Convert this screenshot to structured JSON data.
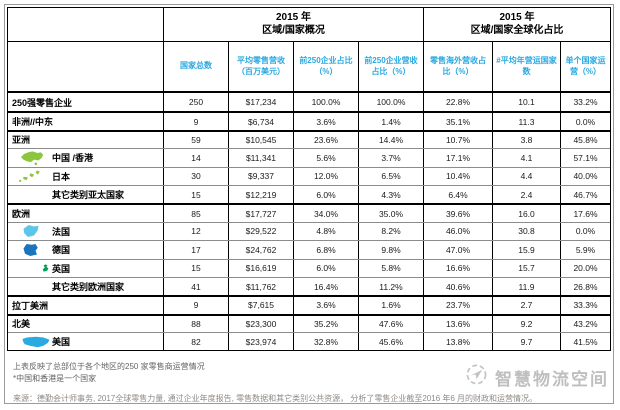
{
  "table": {
    "group_headers": [
      {
        "line1": "2015 年",
        "line2": "区域/国家概况"
      },
      {
        "line1": "2015 年",
        "line2": "区域/国家全球化占比"
      }
    ],
    "columns": [
      "国家总数",
      "平均零售营收（百万美元）",
      "前250企业占比（%）",
      "前250企业营收占比（%）",
      "零售海外营收占比（%）",
      "#平均年营运国家数",
      "单个国家运营（%）"
    ],
    "rows": [
      {
        "label": "250强零售企业",
        "level": 0,
        "icon": "",
        "icon_color": "",
        "thick": true,
        "values": [
          "250",
          "$17,234",
          "100.0%",
          "100.0%",
          "22.8%",
          "10.1",
          "33.2%"
        ]
      },
      {
        "label": "非洲//中东",
        "level": 0,
        "icon": "",
        "icon_color": "",
        "thick": true,
        "values": [
          "9",
          "$6,734",
          "3.6%",
          "1.4%",
          "35.1%",
          "11.3",
          "0.0%"
        ]
      },
      {
        "label": "亚洲",
        "level": 0,
        "icon": "",
        "icon_color": "",
        "thick": true,
        "values": [
          "59",
          "$10,545",
          "23.6%",
          "14.4%",
          "10.7%",
          "3.8",
          "45.8%"
        ]
      },
      {
        "label": "中国 /香港",
        "level": 1,
        "icon": "china-map-icon",
        "icon_color": "#8cc63f",
        "thick": false,
        "values": [
          "14",
          "$11,341",
          "5.6%",
          "3.7%",
          "17.1%",
          "4.1",
          "57.1%"
        ]
      },
      {
        "label": "日本",
        "level": 1,
        "icon": "japan-map-icon",
        "icon_color": "#8cc63f",
        "thick": false,
        "values": [
          "30",
          "$9,337",
          "12.0%",
          "6.5%",
          "10.4%",
          "4.4",
          "40.0%"
        ]
      },
      {
        "label": "其它类别亚太国家",
        "level": 1,
        "icon": "",
        "icon_color": "",
        "thick": false,
        "values": [
          "15",
          "$12,219",
          "6.0%",
          "4.3%",
          "6.4%",
          "2.4",
          "46.7%"
        ]
      },
      {
        "label": "欧洲",
        "level": 0,
        "icon": "",
        "icon_color": "",
        "thick": true,
        "values": [
          "85",
          "$17,727",
          "34.0%",
          "35.0%",
          "39.6%",
          "16.0",
          "17.6%"
        ]
      },
      {
        "label": "法国",
        "level": 1,
        "icon": "france-map-icon",
        "icon_color": "#5bc5ea",
        "thick": false,
        "values": [
          "12",
          "$29,522",
          "4.8%",
          "8.2%",
          "46.0%",
          "30.8",
          "0.0%"
        ]
      },
      {
        "label": "德国",
        "level": 1,
        "icon": "germany-map-icon",
        "icon_color": "#1b75bc",
        "thick": false,
        "values": [
          "17",
          "$24,762",
          "6.8%",
          "9.8%",
          "47.0%",
          "15.9",
          "5.9%"
        ]
      },
      {
        "label": "英国",
        "level": 1,
        "icon": "uk-map-icon",
        "icon_color": "#00a05a",
        "thick": false,
        "values": [
          "15",
          "$16,619",
          "6.0%",
          "5.8%",
          "16.6%",
          "15.7",
          "20.0%"
        ]
      },
      {
        "label": "其它类别欧洲国家",
        "level": 1,
        "icon": "",
        "icon_color": "",
        "thick": false,
        "values": [
          "41",
          "$11,762",
          "16.4%",
          "11.2%",
          "40.6%",
          "11.9",
          "26.8%"
        ]
      },
      {
        "label": "拉丁美洲",
        "level": 0,
        "icon": "",
        "icon_color": "",
        "thick": true,
        "values": [
          "9",
          "$7,615",
          "3.6%",
          "1.6%",
          "23.7%",
          "2.7",
          "33.3%"
        ]
      },
      {
        "label": "北美",
        "level": 0,
        "icon": "",
        "icon_color": "",
        "thick": true,
        "values": [
          "88",
          "$23,300",
          "35.2%",
          "47.6%",
          "13.6%",
          "9.2",
          "43.2%"
        ]
      },
      {
        "label": "美国",
        "level": 1,
        "icon": "usa-map-icon",
        "icon_color": "#29abe2",
        "thick": false,
        "values": [
          "82",
          "$23,974",
          "32.8%",
          "45.6%",
          "13.8%",
          "9.7",
          "41.5%"
        ]
      }
    ]
  },
  "footnotes": {
    "note1": "上表反映了总部位于各个地区的250 家零售商运营情况",
    "note2": "*中国和香港是一个国家",
    "source": "来源：德勤会计师事务, 2017全球零售力量, 通过企业年度报告, 零售数据和其它类别公共资源， 分析了零售企业截至2016 年6 月的财政和运营情况。"
  },
  "logo": {
    "text": "智慧物流空间",
    "icon": "paper-plane-icon"
  },
  "colors": {
    "header_accent": "#29a9e1",
    "grid_major": "#000000",
    "grid_minor": "#8c8c8c",
    "china_green": "#8cc63f",
    "france_blue": "#5bc5ea",
    "germany_blue": "#1b75bc",
    "uk_green": "#00a05a",
    "usa_blue": "#29abe2",
    "logo_grey": "#bfbfbf"
  },
  "chart_data": {
    "type": "table",
    "title": "2015年 区域/国家概况与区域/国家全球化占比",
    "column_groups": [
      {
        "label": "2015 年 区域/国家概况",
        "columns": [
          0,
          1,
          2,
          3
        ]
      },
      {
        "label": "2015 年 区域/国家全球化占比",
        "columns": [
          4,
          5,
          6
        ]
      }
    ],
    "columns": [
      "国家总数",
      "平均零售营收（百万美元）",
      "前250企业占比（%）",
      "前250企业营收占比（%）",
      "零售海外营收占比（%）",
      "#平均年营运国家数",
      "单个国家运营（%）"
    ],
    "rows": [
      {
        "label": "250强零售企业",
        "values": [
          250,
          17234,
          100.0,
          100.0,
          22.8,
          10.1,
          33.2
        ]
      },
      {
        "label": "非洲//中东",
        "values": [
          9,
          6734,
          3.6,
          1.4,
          35.1,
          11.3,
          0.0
        ]
      },
      {
        "label": "亚洲",
        "values": [
          59,
          10545,
          23.6,
          14.4,
          10.7,
          3.8,
          45.8
        ]
      },
      {
        "label": "中国/香港",
        "values": [
          14,
          11341,
          5.6,
          3.7,
          17.1,
          4.1,
          57.1
        ]
      },
      {
        "label": "日本",
        "values": [
          30,
          9337,
          12.0,
          6.5,
          10.4,
          4.4,
          40.0
        ]
      },
      {
        "label": "其它类别亚太国家",
        "values": [
          15,
          12219,
          6.0,
          4.3,
          6.4,
          2.4,
          46.7
        ]
      },
      {
        "label": "欧洲",
        "values": [
          85,
          17727,
          34.0,
          35.0,
          39.6,
          16.0,
          17.6
        ]
      },
      {
        "label": "法国",
        "values": [
          12,
          29522,
          4.8,
          8.2,
          46.0,
          30.8,
          0.0
        ]
      },
      {
        "label": "德国",
        "values": [
          17,
          24762,
          6.8,
          9.8,
          47.0,
          15.9,
          5.9
        ]
      },
      {
        "label": "英国",
        "values": [
          15,
          16619,
          6.0,
          5.8,
          16.6,
          15.7,
          20.0
        ]
      },
      {
        "label": "其它类别欧洲国家",
        "values": [
          41,
          11762,
          16.4,
          11.2,
          40.6,
          11.9,
          26.8
        ]
      },
      {
        "label": "拉丁美洲",
        "values": [
          9,
          7615,
          3.6,
          1.6,
          23.7,
          2.7,
          33.3
        ]
      },
      {
        "label": "北美",
        "values": [
          88,
          23300,
          35.2,
          47.6,
          13.6,
          9.2,
          43.2
        ]
      },
      {
        "label": "美国",
        "values": [
          82,
          23974,
          32.8,
          45.6,
          13.8,
          9.7,
          41.5
        ]
      }
    ]
  }
}
